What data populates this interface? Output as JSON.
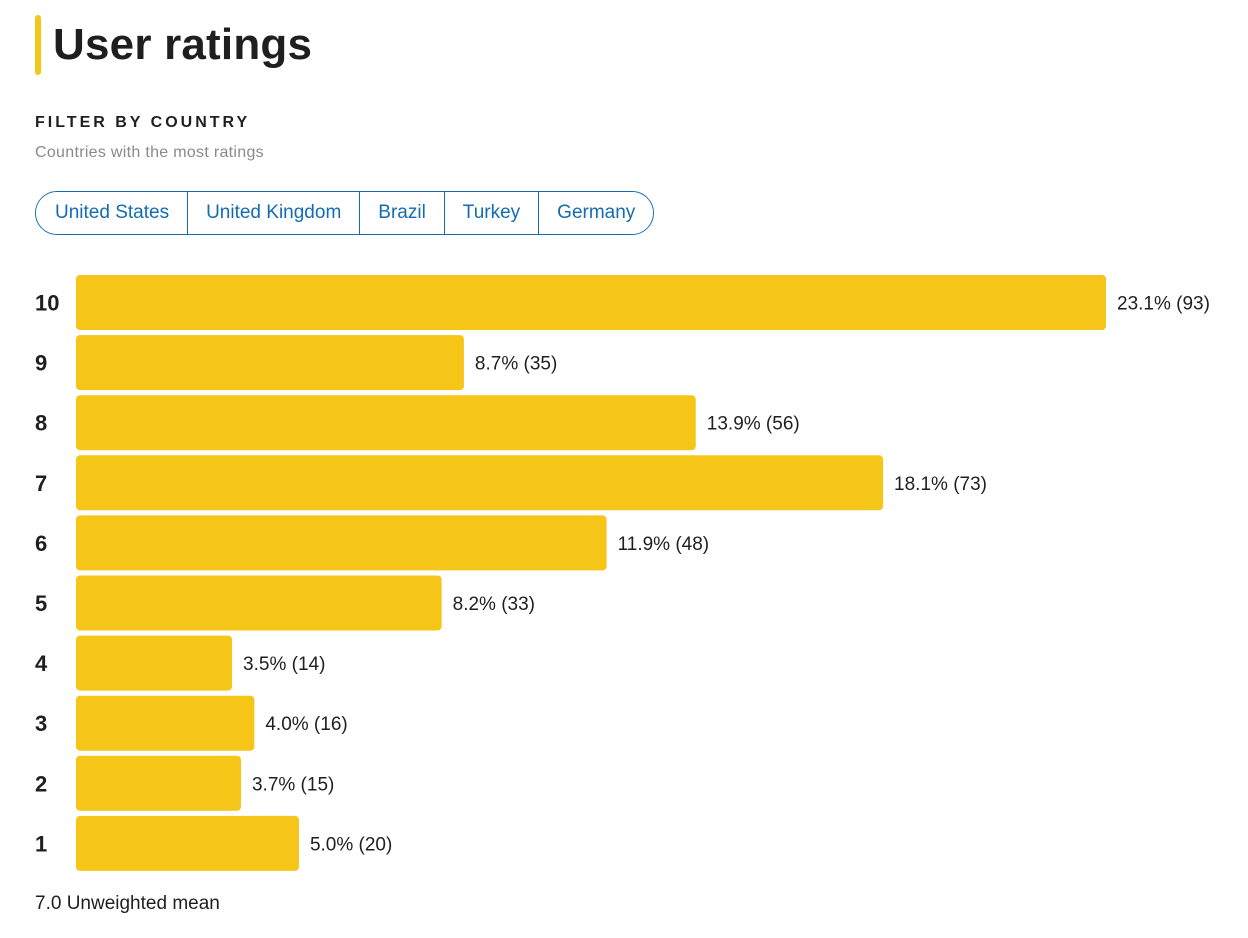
{
  "header": {
    "title": "User ratings"
  },
  "filter": {
    "heading": "FILTER BY COUNTRY",
    "subtitle": "Countries with the most ratings",
    "countries": [
      "United States",
      "United Kingdom",
      "Brazil",
      "Turkey",
      "Germany"
    ]
  },
  "colors": {
    "bar": "#f5c518",
    "accent": "#f5c518",
    "link": "#136cb2"
  },
  "chart_data": {
    "type": "bar",
    "orientation": "horizontal",
    "title": "User ratings",
    "categories": [
      "10",
      "9",
      "8",
      "7",
      "6",
      "5",
      "4",
      "3",
      "2",
      "1"
    ],
    "values": [
      23.1,
      8.7,
      13.9,
      18.1,
      11.9,
      8.2,
      3.5,
      4.0,
      3.7,
      5.0
    ],
    "counts": [
      93,
      35,
      56,
      73,
      48,
      33,
      14,
      16,
      15,
      20
    ],
    "data_labels": [
      "23.1% (93)",
      "8.7% (35)",
      "13.9% (56)",
      "18.1% (73)",
      "11.9% (48)",
      "8.2% (33)",
      "3.5% (14)",
      "4.0% (16)",
      "3.7% (15)",
      "5.0% (20)"
    ],
    "xlabel": "",
    "ylabel": "",
    "grid": false,
    "legend": "none"
  },
  "summary": {
    "mean_text": "7.0 Unweighted mean"
  }
}
